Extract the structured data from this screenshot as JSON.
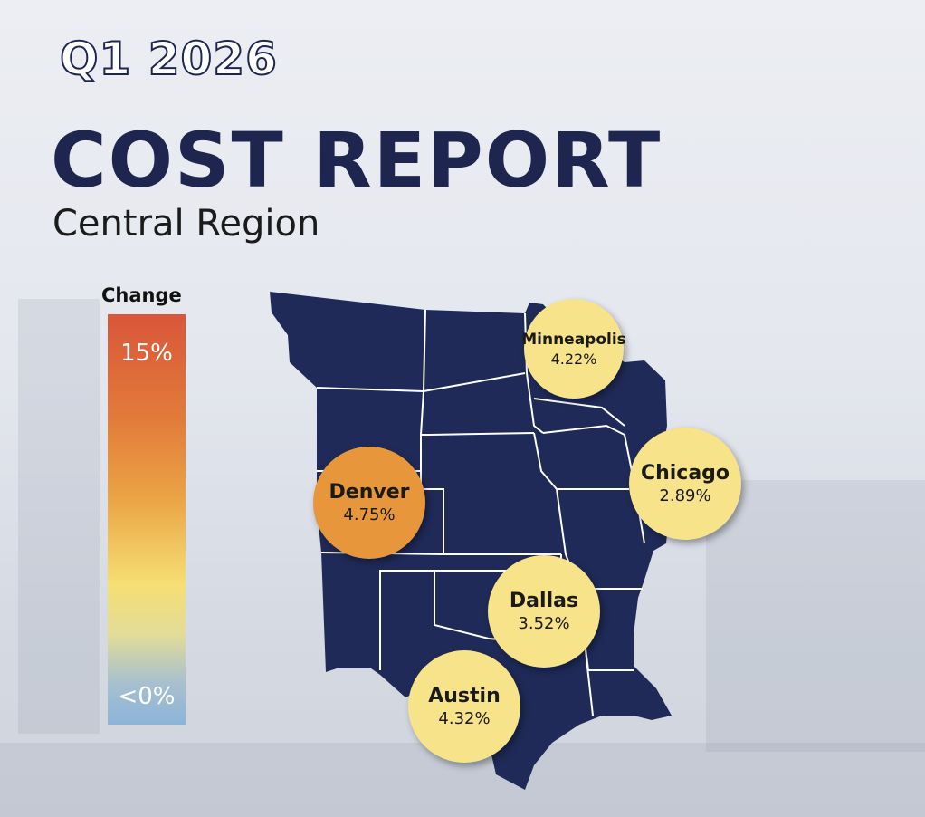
{
  "header": {
    "quarter": "Q1 2026",
    "title": "COST REPORT",
    "subtitle": "Central Region"
  },
  "legend": {
    "title": "Change",
    "max_label": "15%",
    "min_label": "<0%"
  },
  "colors": {
    "navy": "#1e2650",
    "map": "#1f2a58",
    "yellow": "#f7e38a",
    "orange": "#e8963c"
  },
  "cities": [
    {
      "name": "Minneapolis",
      "value": "4.22%",
      "change": 4.22
    },
    {
      "name": "Chicago",
      "value": "2.89%",
      "change": 2.89
    },
    {
      "name": "Denver",
      "value": "4.75%",
      "change": 4.75
    },
    {
      "name": "Dallas",
      "value": "3.52%",
      "change": 3.52
    },
    {
      "name": "Austin",
      "value": "4.32%",
      "change": 4.32
    }
  ]
}
